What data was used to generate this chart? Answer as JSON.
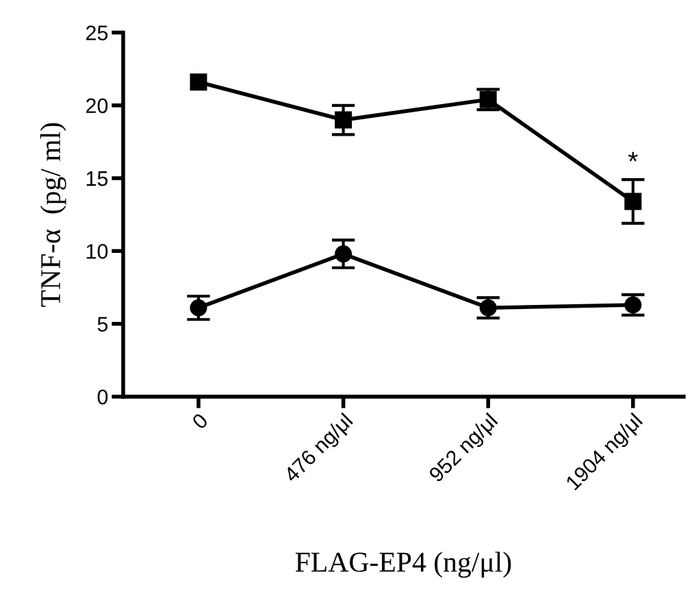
{
  "chart_data": {
    "type": "line",
    "xlabel": "FLAG-EP4 (ng/μl)",
    "ylabel": "TNF-α  (pg/ ml)",
    "categories": [
      "0",
      "476 ng/μl",
      "952 ng/μl",
      "1904 ng/μl"
    ],
    "series": [
      {
        "color": "#000000",
        "marker": "square",
        "values": [
          21.6,
          19.0,
          20.4,
          13.4
        ],
        "errors": [
          null,
          1.0,
          0.7,
          1.5
        ]
      },
      {
        "color": "#000000",
        "marker": "circle",
        "values": [
          6.1,
          9.8,
          6.1,
          6.3
        ],
        "errors": [
          0.8,
          0.95,
          0.7,
          0.7
        ]
      }
    ],
    "ylim": [
      0,
      25
    ],
    "yticks": [
      0,
      5,
      10,
      15,
      20,
      25
    ],
    "grid": false,
    "legend": false,
    "annotations": [
      "*"
    ]
  }
}
